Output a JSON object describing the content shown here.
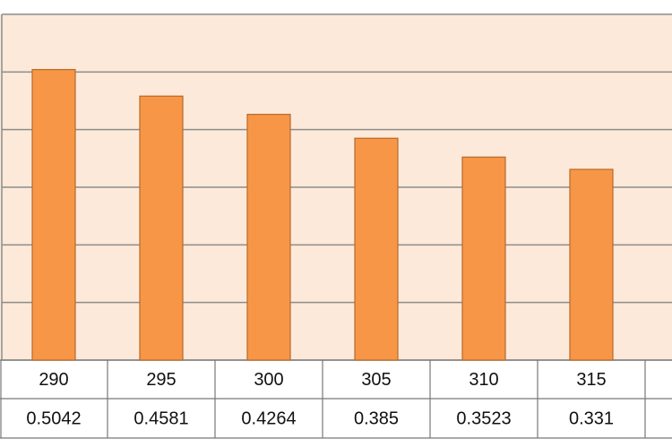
{
  "chart_data": {
    "type": "bar",
    "categories": [
      "290",
      "295",
      "300",
      "305",
      "310",
      "315"
    ],
    "values": [
      0.5042,
      0.4581,
      0.4264,
      0.385,
      0.3523,
      0.331
    ],
    "color": "#f79646",
    "ylim": [
      0,
      0.6
    ],
    "yticks": [
      0,
      0.1,
      0.2,
      0.3,
      0.4,
      0.5,
      0.6
    ],
    "grid": true
  }
}
